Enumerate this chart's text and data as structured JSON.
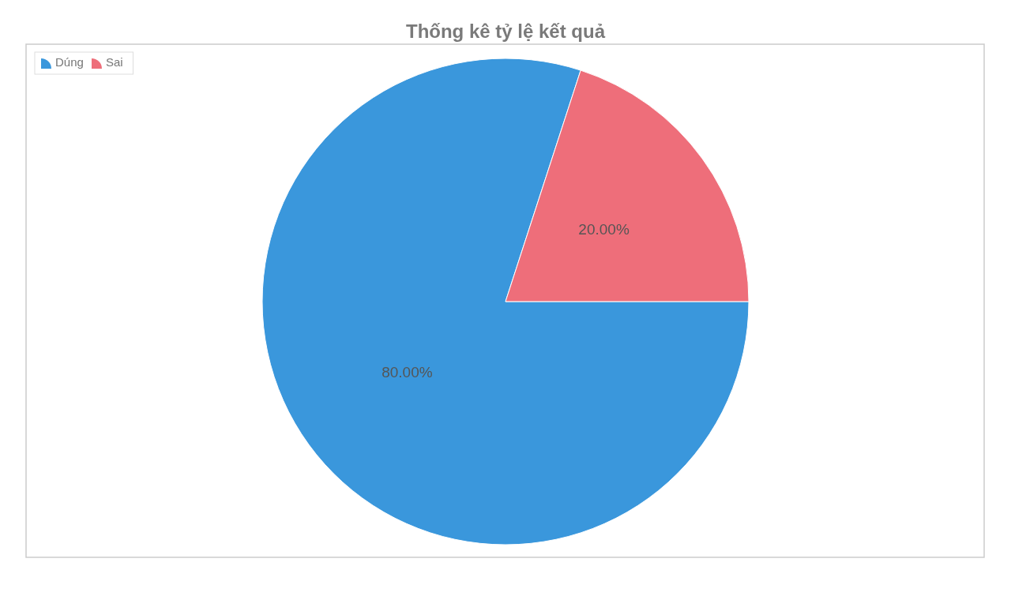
{
  "chart_data": {
    "type": "pie",
    "title": "Thống kê tỷ lệ kết quả",
    "categories": [
      "Dúng",
      "Sai"
    ],
    "values": [
      80,
      20
    ],
    "colors": [
      "#3a97dc",
      "#ee6e7a"
    ],
    "value_labels": [
      "80.00%",
      "20.00%"
    ],
    "legend": "top left"
  }
}
